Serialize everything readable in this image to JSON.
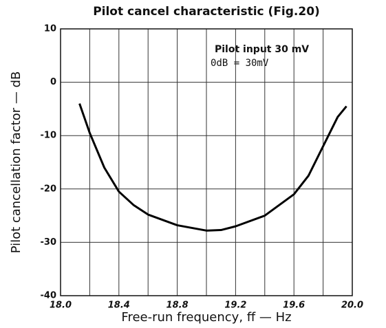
{
  "chart_data": {
    "type": "line",
    "title": "Pilot cancel characteristic (Fig.20)",
    "x_label": "Free-run frequency, ff — Hz",
    "y_label": "Pilot cancellation factor — dB",
    "annotations": [
      "Pilot input 30 mV",
      "0dB = 30mV"
    ],
    "x": [
      18.13,
      18.2,
      18.3,
      18.4,
      18.5,
      18.6,
      18.8,
      19.0,
      19.1,
      19.2,
      19.4,
      19.6,
      19.7,
      19.8,
      19.9,
      19.96
    ],
    "series": [
      {
        "name": "Pilot cancellation factor",
        "color": "#000000",
        "values": [
          -4,
          -9.5,
          -16,
          -20.5,
          -23,
          -24.8,
          -26.8,
          -27.8,
          -27.7,
          -27,
          -25,
          -21,
          -17.5,
          -12,
          -6.5,
          -4.5
        ]
      }
    ],
    "xlim": [
      18,
      20
    ],
    "xticks": [
      {
        "value": 18,
        "label": "18.0"
      },
      18.4,
      18.8,
      19.2,
      19.6,
      {
        "value": 20,
        "label": "20.0"
      }
    ],
    "xgrid": [
      18.2,
      18.6,
      19.0,
      19.4,
      19.8
    ],
    "ylim": [
      -40,
      10
    ],
    "yticks": [
      10,
      0,
      -10,
      -20,
      -30,
      -40
    ],
    "grid": true
  }
}
